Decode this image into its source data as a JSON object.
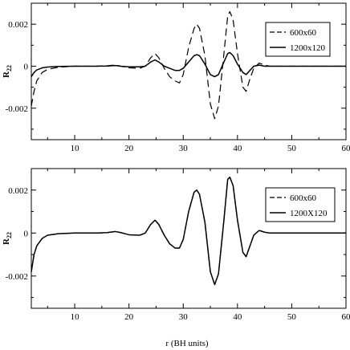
{
  "figure": {
    "xlabel": "r (BH units)"
  },
  "chart_data": [
    {
      "type": "line",
      "panel": "top",
      "ylabel": "R",
      "ylabel_sub": "22",
      "xlim": [
        2,
        60
      ],
      "ylim": [
        -0.0035,
        0.003
      ],
      "xticks": [
        10,
        20,
        30,
        40,
        50,
        60
      ],
      "yticks": [
        -0.002,
        0,
        0.002
      ],
      "ytick_labels": [
        "-0.002",
        "0",
        "0.002"
      ],
      "grid": false,
      "legend_position": "top-right",
      "series": [
        {
          "name": "600x60",
          "style": "dashed",
          "color": "#000000",
          "points": [
            [
              2,
              -0.0019
            ],
            [
              2.5,
              -0.0012
            ],
            [
              3,
              -0.0007
            ],
            [
              4,
              -0.0003
            ],
            [
              5,
              -0.00015
            ],
            [
              7,
              -5e-05
            ],
            [
              10,
              0
            ],
            [
              12,
              0
            ],
            [
              14,
              0
            ],
            [
              16,
              2e-05
            ],
            [
              17.5,
              6e-05
            ],
            [
              18.5,
              0
            ],
            [
              20,
              -8e-05
            ],
            [
              22,
              -0.0001
            ],
            [
              23,
              0
            ],
            [
              24,
              0.0004
            ],
            [
              24.8,
              0.0006
            ],
            [
              25.5,
              0.0004
            ],
            [
              26.5,
              -0.0001
            ],
            [
              27.5,
              -0.0005
            ],
            [
              28.5,
              -0.0007
            ],
            [
              29.3,
              -0.0008
            ],
            [
              30,
              -0.0004
            ],
            [
              31,
              0.0009
            ],
            [
              32,
              0.0018
            ],
            [
              32.5,
              0.002
            ],
            [
              33,
              0.0018
            ],
            [
              34,
              0.0005
            ],
            [
              35,
              -0.0018
            ],
            [
              35.8,
              -0.0025
            ],
            [
              36.5,
              -0.0019
            ],
            [
              37.5,
              0.0006
            ],
            [
              38.2,
              0.0024
            ],
            [
              38.6,
              0.0026
            ],
            [
              39.2,
              0.0022
            ],
            [
              40,
              0.0006
            ],
            [
              41,
              -0.001
            ],
            [
              41.6,
              -0.0012
            ],
            [
              42.3,
              -0.0006
            ],
            [
              43,
              -0.0001
            ],
            [
              44,
              0.00015
            ],
            [
              45,
              5e-05
            ],
            [
              46,
              0
            ],
            [
              50,
              0
            ],
            [
              60,
              0
            ]
          ]
        },
        {
          "name": "1200x120",
          "style": "solid",
          "color": "#000000",
          "points": [
            [
              2,
              -0.0005
            ],
            [
              2.5,
              -0.0003
            ],
            [
              3,
              -0.00018
            ],
            [
              4,
              -8e-05
            ],
            [
              5,
              -4e-05
            ],
            [
              7,
              -1e-05
            ],
            [
              10,
              0
            ],
            [
              12,
              0
            ],
            [
              14,
              0
            ],
            [
              16,
              1e-05
            ],
            [
              17.5,
              3e-05
            ],
            [
              18.5,
              0
            ],
            [
              20,
              -3e-05
            ],
            [
              22,
              -3e-05
            ],
            [
              23,
              0
            ],
            [
              24,
              0.0002
            ],
            [
              24.8,
              0.0003
            ],
            [
              25.5,
              0.0002
            ],
            [
              26.5,
              0
            ],
            [
              27.5,
              -0.0001
            ],
            [
              28.5,
              -0.0002
            ],
            [
              29.3,
              -0.0002
            ],
            [
              30,
              -0.0001
            ],
            [
              31,
              0.0002
            ],
            [
              32,
              0.0005
            ],
            [
              32.5,
              0.00055
            ],
            [
              33,
              0.0005
            ],
            [
              34,
              0.0001
            ],
            [
              35,
              -0.0004
            ],
            [
              35.8,
              -0.0005
            ],
            [
              36.5,
              -0.0004
            ],
            [
              37.5,
              0.0002
            ],
            [
              38.2,
              0.0006
            ],
            [
              38.6,
              0.00065
            ],
            [
              39.2,
              0.0005
            ],
            [
              40,
              0.0001
            ],
            [
              41,
              -0.0003
            ],
            [
              41.6,
              -0.0004
            ],
            [
              42.3,
              -0.0002
            ],
            [
              43,
              0
            ],
            [
              44,
              5e-05
            ],
            [
              45,
              0
            ],
            [
              50,
              0
            ],
            [
              60,
              0
            ]
          ]
        }
      ]
    },
    {
      "type": "line",
      "panel": "bottom",
      "ylabel": "R",
      "ylabel_sub": "22",
      "xlim": [
        2,
        60
      ],
      "ylim": [
        -0.0035,
        0.003
      ],
      "xticks": [
        10,
        20,
        30,
        40,
        50,
        60
      ],
      "yticks": [
        -0.002,
        0,
        0.002
      ],
      "ytick_labels": [
        "-0.002",
        "0",
        "0.002"
      ],
      "grid": false,
      "legend_position": "top-right",
      "series": [
        {
          "name": "600x60",
          "style": "dashed",
          "color": "#000000",
          "points": [
            [
              2,
              -0.0018
            ],
            [
              2.5,
              -0.001
            ],
            [
              3,
              -0.0006
            ],
            [
              4,
              -0.00025
            ],
            [
              5,
              -0.0001
            ],
            [
              7,
              -3e-05
            ],
            [
              10,
              0
            ],
            [
              14,
              0
            ],
            [
              16,
              2e-05
            ],
            [
              17.5,
              7e-05
            ],
            [
              18.5,
              2e-05
            ],
            [
              20,
              -8e-05
            ],
            [
              22,
              -0.0001
            ],
            [
              23,
              0
            ],
            [
              24,
              0.0004
            ],
            [
              24.8,
              0.0006
            ],
            [
              25.5,
              0.0004
            ],
            [
              26.5,
              -0.0001
            ],
            [
              27.5,
              -0.0005
            ],
            [
              28.5,
              -0.0007
            ],
            [
              29.3,
              -0.0007
            ],
            [
              30,
              -0.0003
            ],
            [
              31,
              0.001
            ],
            [
              32,
              0.0019
            ],
            [
              32.5,
              0.002
            ],
            [
              33,
              0.0018
            ],
            [
              34,
              0.0005
            ],
            [
              35,
              -0.0018
            ],
            [
              35.8,
              -0.0024
            ],
            [
              36.5,
              -0.0019
            ],
            [
              37.5,
              0.0006
            ],
            [
              38.2,
              0.0025
            ],
            [
              38.6,
              0.0026
            ],
            [
              39.2,
              0.0022
            ],
            [
              40,
              0.0006
            ],
            [
              41,
              -0.0009
            ],
            [
              41.6,
              -0.0011
            ],
            [
              42.3,
              -0.0006
            ],
            [
              43,
              -0.0001
            ],
            [
              44,
              0.00012
            ],
            [
              45,
              4e-05
            ],
            [
              46,
              0
            ],
            [
              50,
              0
            ],
            [
              60,
              0
            ]
          ]
        },
        {
          "name": "1200X120",
          "style": "solid",
          "color": "#000000",
          "points": [
            [
              2,
              -0.0018
            ],
            [
              2.5,
              -0.001
            ],
            [
              3,
              -0.0006
            ],
            [
              4,
              -0.00025
            ],
            [
              5,
              -0.0001
            ],
            [
              7,
              -3e-05
            ],
            [
              10,
              0
            ],
            [
              14,
              0
            ],
            [
              16,
              2e-05
            ],
            [
              17.5,
              7e-05
            ],
            [
              18.5,
              2e-05
            ],
            [
              20,
              -8e-05
            ],
            [
              22,
              -0.0001
            ],
            [
              23,
              0
            ],
            [
              24,
              0.0004
            ],
            [
              24.8,
              0.0006
            ],
            [
              25.5,
              0.0004
            ],
            [
              26.5,
              -0.0001
            ],
            [
              27.5,
              -0.0005
            ],
            [
              28.5,
              -0.0007
            ],
            [
              29.3,
              -0.0007
            ],
            [
              30,
              -0.0003
            ],
            [
              31,
              0.001
            ],
            [
              32,
              0.0019
            ],
            [
              32.5,
              0.002
            ],
            [
              33,
              0.0018
            ],
            [
              34,
              0.0005
            ],
            [
              35,
              -0.0018
            ],
            [
              35.8,
              -0.0024
            ],
            [
              36.5,
              -0.0019
            ],
            [
              37.5,
              0.0006
            ],
            [
              38.2,
              0.0025
            ],
            [
              38.6,
              0.0026
            ],
            [
              39.2,
              0.0022
            ],
            [
              40,
              0.0006
            ],
            [
              41,
              -0.0009
            ],
            [
              41.6,
              -0.0011
            ],
            [
              42.3,
              -0.0006
            ],
            [
              43,
              -0.0001
            ],
            [
              44,
              0.00012
            ],
            [
              45,
              4e-05
            ],
            [
              46,
              0
            ],
            [
              50,
              0
            ],
            [
              60,
              0
            ]
          ]
        }
      ]
    }
  ]
}
